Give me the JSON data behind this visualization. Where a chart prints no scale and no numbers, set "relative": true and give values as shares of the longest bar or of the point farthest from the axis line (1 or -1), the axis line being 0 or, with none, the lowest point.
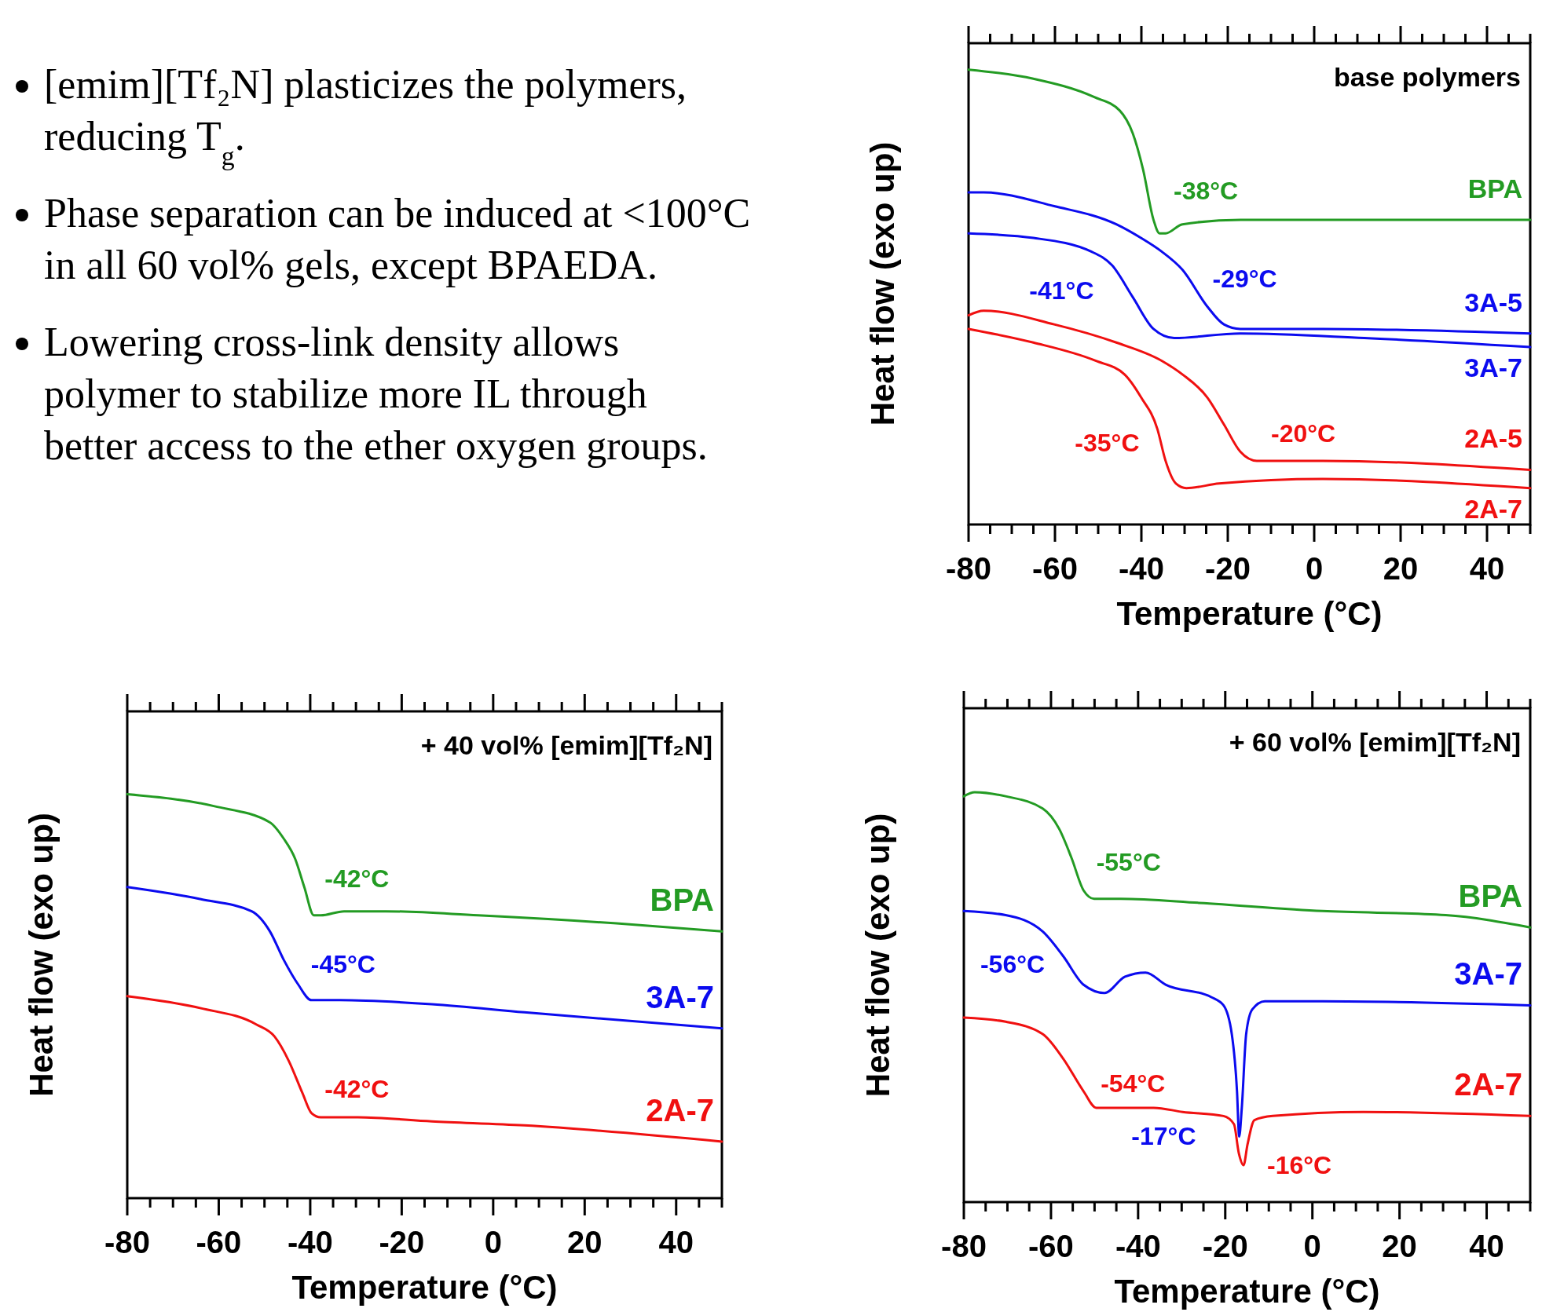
{
  "chart_data": [
    {
      "type": "other",
      "annotations": [
        "[emim][Tf₂N] plasticizes the polymers, reducing T$_{g}$.",
        "Phase separation can be induced at <100°C in all 60 vol% gels, except BPAEDA.",
        "Lowering cross-link density allows polymer to stabilize more IL through better access to the ether oxygen groups."
      ]
    },
    {
      "type": "line",
      "relative": true,
      "xlim": [
        -80,
        50
      ],
      "xticks": [
        -80,
        {
          "value": -75,
          "label": null
        },
        {
          "value": -70,
          "label": null
        },
        {
          "value": -65,
          "label": null
        },
        -60,
        {
          "value": -55,
          "label": null
        },
        {
          "value": -50,
          "label": null
        },
        {
          "value": -45,
          "label": null
        },
        -40,
        {
          "value": -35,
          "label": null
        },
        {
          "value": -30,
          "label": null
        },
        {
          "value": -25,
          "label": null
        },
        -20,
        {
          "value": -15,
          "label": null
        },
        {
          "value": -10,
          "label": null
        },
        {
          "value": -5,
          "label": null
        },
        0,
        {
          "value": 5,
          "label": null
        },
        {
          "value": 10,
          "label": null
        },
        {
          "value": 15,
          "label": null
        },
        20,
        {
          "value": 25,
          "label": null
        },
        {
          "value": 30,
          "label": null
        },
        {
          "value": 35,
          "label": null
        },
        40,
        {
          "value": 45,
          "label": null
        },
        {
          "value": 50,
          "label": null
        }
      ],
      "xlabel": "Temperature (°C)",
      "ylabel": "Heat flow (exo up)",
      "series": [
        {
          "name": "BPA",
          "color": "#239b23",
          "x": [
            -80,
            -65,
            -51,
            -45,
            -42,
            -39.6,
            -37.2,
            -35.8,
            -34.4,
            -30.5,
            -17,
            2,
            21,
            50
          ],
          "values": [
            1,
            0.98,
            0.94,
            0.91,
            0.86,
            0.78,
            0.67,
            0.64,
            0.64,
            0.66,
            0.67,
            0.67,
            0.67,
            0.67
          ]
        },
        {
          "name": "3A-5",
          "color": "#0b0bef",
          "x": [
            -80,
            -76.5,
            -60.2,
            -45.8,
            -40.1,
            -35.3,
            -30.5,
            -24.8,
            -20.9,
            -17.1,
            2,
            50
          ],
          "values": [
            0.73,
            0.73,
            0.7,
            0.66,
            0.63,
            0.6,
            0.56,
            0.48,
            0.44,
            0.43,
            0.43,
            0.42
          ]
        },
        {
          "name": "3A-7",
          "color": "#0b0bef",
          "x": [
            -80,
            -65,
            -51.6,
            -46.8,
            -42,
            -37.2,
            -32.4,
            -17.1,
            11.6,
            50
          ],
          "values": [
            0.64,
            0.63,
            0.6,
            0.57,
            0.5,
            0.43,
            0.41,
            0.42,
            0.41,
            0.39
          ]
        },
        {
          "name": "2A-5",
          "color": "#f01010",
          "x": [
            -80,
            -76.5,
            -60.2,
            -45.8,
            -35.3,
            -30.5,
            -24.8,
            -20.9,
            -17.1,
            -13.3,
            2,
            50
          ],
          "values": [
            0.46,
            0.47,
            0.44,
            0.4,
            0.36,
            0.33,
            0.28,
            0.22,
            0.16,
            0.14,
            0.14,
            0.12
          ]
        },
        {
          "name": "2A-7",
          "color": "#f01010",
          "x": [
            -80,
            -65,
            -50.6,
            -43.9,
            -40.1,
            -36.3,
            -34.4,
            -32,
            -29.6,
            -22,
            2,
            50
          ],
          "values": [
            0.43,
            0.4,
            0.36,
            0.33,
            0.28,
            0.21,
            0.14,
            0.09,
            0.08,
            0.09,
            0.1,
            0.08
          ]
        }
      ],
      "annotations": [
        "base polymers",
        {
          "text": "-38°C",
          "x": -38,
          "y": 0.71
        },
        {
          "text": "-41°C",
          "x": -41,
          "y": 0.49
        },
        {
          "text": "-29°C",
          "x": -29,
          "y": 0.54
        },
        {
          "text": "-35°C",
          "x": -35,
          "y": 0.18
        },
        {
          "text": "-20°C",
          "x": -20,
          "y": 0.2
        }
      ]
    },
    {
      "type": "line",
      "relative": true,
      "xlim": [
        -80,
        50
      ],
      "xticks": [
        -80,
        {
          "value": -75,
          "label": null
        },
        {
          "value": -70,
          "label": null
        },
        {
          "value": -65,
          "label": null
        },
        -60,
        {
          "value": -55,
          "label": null
        },
        {
          "value": -50,
          "label": null
        },
        {
          "value": -45,
          "label": null
        },
        -40,
        {
          "value": -35,
          "label": null
        },
        {
          "value": -30,
          "label": null
        },
        {
          "value": -25,
          "label": null
        },
        -20,
        {
          "value": -15,
          "label": null
        },
        {
          "value": -10,
          "label": null
        },
        {
          "value": -5,
          "label": null
        },
        0,
        {
          "value": 5,
          "label": null
        },
        {
          "value": 10,
          "label": null
        },
        {
          "value": 15,
          "label": null
        },
        20,
        {
          "value": 25,
          "label": null
        },
        {
          "value": 30,
          "label": null
        },
        {
          "value": 35,
          "label": null
        },
        40,
        {
          "value": 45,
          "label": null
        },
        {
          "value": 50,
          "label": null
        }
      ],
      "xlabel": "Temperature (°C)",
      "ylabel": "Heat flow (exo up)",
      "series": [
        {
          "name": "BPA",
          "color": "#239b23",
          "x": [
            -80,
            -60.9,
            -48.8,
            -45.8,
            -43.3,
            -41.3,
            -39.2,
            -37.7,
            -32.6,
            -23.5,
            -3.3,
            27,
            50
          ],
          "values": [
            1,
            0.97,
            0.93,
            0.89,
            0.84,
            0.77,
            0.7,
            0.7,
            0.71,
            0.71,
            0.7,
            0.68,
            0.66
          ]
        },
        {
          "name": "3A-7",
          "color": "#0b0bef",
          "x": [
            -80,
            -63.9,
            -52.8,
            -48.8,
            -45.8,
            -42.7,
            -39.7,
            -33.6,
            -13.4,
            6.8,
            50
          ],
          "values": [
            0.77,
            0.74,
            0.71,
            0.66,
            0.59,
            0.53,
            0.49,
            0.49,
            0.48,
            0.46,
            0.42
          ]
        },
        {
          "name": "2A-7",
          "color": "#f01010",
          "x": [
            -80,
            -63.9,
            -51.8,
            -47.8,
            -44.7,
            -41.7,
            -39.7,
            -37.7,
            -29.6,
            -13.4,
            6.8,
            50
          ],
          "values": [
            0.5,
            0.47,
            0.43,
            0.4,
            0.34,
            0.26,
            0.21,
            0.2,
            0.2,
            0.19,
            0.18,
            0.14
          ]
        }
      ],
      "annotations": [
        "+ 40 vol% [emim][Tf₂N]",
        {
          "text": "-42°C",
          "x": -42,
          "y": 0.79
        },
        {
          "text": "-45°C",
          "x": -45,
          "y": 0.58
        },
        {
          "text": "-42°C",
          "x": -42,
          "y": 0.27
        }
      ]
    },
    {
      "type": "line",
      "relative": true,
      "xlim": [
        -80,
        50
      ],
      "xticks": [
        -80,
        {
          "value": -75,
          "label": null
        },
        {
          "value": -70,
          "label": null
        },
        {
          "value": -65,
          "label": null
        },
        -60,
        {
          "value": -55,
          "label": null
        },
        {
          "value": -50,
          "label": null
        },
        {
          "value": -45,
          "label": null
        },
        -40,
        {
          "value": -35,
          "label": null
        },
        {
          "value": -30,
          "label": null
        },
        {
          "value": -25,
          "label": null
        },
        -20,
        {
          "value": -15,
          "label": null
        },
        {
          "value": -10,
          "label": null
        },
        {
          "value": -5,
          "label": null
        },
        0,
        {
          "value": 5,
          "label": null
        },
        {
          "value": 10,
          "label": null
        },
        {
          "value": 15,
          "label": null
        },
        20,
        {
          "value": 25,
          "label": null
        },
        {
          "value": 30,
          "label": null
        },
        {
          "value": 35,
          "label": null
        },
        40,
        {
          "value": 45,
          "label": null
        },
        {
          "value": 50,
          "label": null
        }
      ],
      "xlabel": "Temperature (°C)",
      "ylabel": "Heat flow (exo up)",
      "series": [
        {
          "name": "BPA",
          "color": "#239b23",
          "x": [
            -80,
            -77.5,
            -70.4,
            -61.9,
            -58.1,
            -55.3,
            -52.5,
            -50.1,
            -44,
            -26,
            2.3,
            30.6,
            50
          ],
          "values": [
            0.99,
            1,
            0.99,
            0.96,
            0.91,
            0.84,
            0.76,
            0.74,
            0.74,
            0.73,
            0.71,
            0.7,
            0.67
          ]
        },
        {
          "name": "3A-7",
          "color": "#0b0bef",
          "x": [
            -80,
            -70.4,
            -61.9,
            -57.2,
            -52.5,
            -47.7,
            -43,
            -38.3,
            -33.6,
            -23.2,
            -20.4,
            -18.5,
            -17.3,
            -16.8,
            -16.2,
            -15.2,
            -13.8,
            -10.9,
            2.3,
            50
          ],
          "values": [
            0.71,
            0.7,
            0.66,
            0.6,
            0.53,
            0.51,
            0.55,
            0.56,
            0.53,
            0.5,
            0.48,
            0.41,
            0.27,
            0.16,
            0.23,
            0.41,
            0.47,
            0.49,
            0.49,
            0.48
          ]
        },
        {
          "name": "2A-7",
          "color": "#f01010",
          "x": [
            -80,
            -70.4,
            -61.9,
            -57.2,
            -52.5,
            -49.6,
            -46.8,
            -41.1,
            -36.4,
            -29.8,
            -20.4,
            -18,
            -16.9,
            -15.8,
            -14.9,
            -13.3,
            -9.1,
            11.7,
            50
          ],
          "values": [
            0.45,
            0.44,
            0.41,
            0.35,
            0.27,
            0.23,
            0.23,
            0.23,
            0.23,
            0.22,
            0.21,
            0.19,
            0.12,
            0.09,
            0.14,
            0.2,
            0.21,
            0.22,
            0.21
          ]
        }
      ],
      "annotations": [
        "+ 60 vol% [emim][Tf₂N]",
        {
          "text": "-55°C",
          "x": -55,
          "y": 0.83
        },
        {
          "text": "-56°C",
          "x": -56,
          "y": 0.58
        },
        {
          "text": "-54°C",
          "x": -54,
          "y": 0.29
        },
        {
          "text": "-17°C",
          "x": -16.8,
          "y": 0.16
        },
        {
          "text": "-16°C",
          "x": -15.8,
          "y": 0.09
        }
      ]
    }
  ]
}
